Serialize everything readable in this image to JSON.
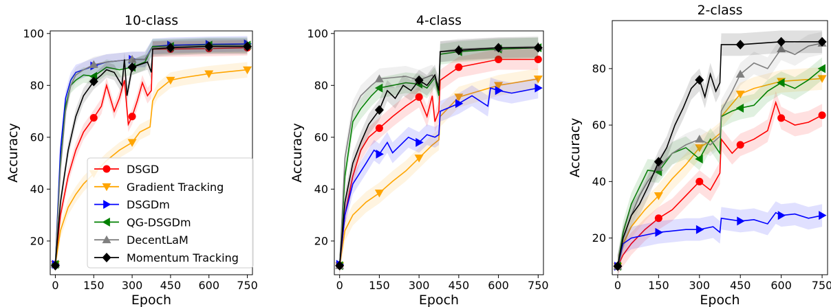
{
  "series_styles": {
    "DSGD": {
      "color": "#ff0000",
      "marker": "circle"
    },
    "Gradient Tracking": {
      "color": "#ffa500",
      "marker": "triangle-down"
    },
    "DSGDm": {
      "color": "#0000ff",
      "marker": "triangle-right"
    },
    "QG-DSGDm": {
      "color": "#008000",
      "marker": "triangle-left"
    },
    "DecentLaM": {
      "color": "#808080",
      "marker": "triangle-up"
    },
    "Momentum Tracking": {
      "color": "#000000",
      "marker": "diamond"
    }
  },
  "legend": {
    "placement": "lower-right",
    "entries": [
      "DSGD",
      "Gradient Tracking",
      "DSGDm",
      "QG-DSGDm",
      "DecentLaM",
      "Momentum Tracking"
    ]
  },
  "chart_data": [
    {
      "type": "line",
      "title": "10-class",
      "xlabel": "Epoch",
      "ylabel": "Accuracy",
      "xlim": [
        -20,
        770
      ],
      "ylim": [
        7,
        101
      ],
      "xticks": [
        0,
        150,
        300,
        450,
        600,
        750
      ],
      "yticks": [
        20,
        40,
        60,
        80,
        100
      ],
      "grid": false,
      "series": [
        {
          "name": "DSGD",
          "x": [
            0,
            20,
            50,
            80,
            110,
            150,
            180,
            200,
            230,
            250,
            270,
            285,
            300,
            320,
            340,
            360,
            375,
            380,
            450,
            600,
            750
          ],
          "y": [
            11,
            30,
            45,
            55,
            62,
            67.5,
            72,
            80,
            70,
            75,
            82,
            65,
            68,
            74,
            81,
            76,
            78,
            94,
            94,
            94.2,
            94.5
          ]
        },
        {
          "name": "Gradient Tracking",
          "x": [
            0,
            20,
            50,
            80,
            110,
            150,
            200,
            250,
            300,
            330,
            370,
            380,
            400,
            450,
            500,
            600,
            750
          ],
          "y": [
            11,
            24,
            33,
            38,
            42,
            46,
            51,
            55,
            58,
            62,
            64,
            74,
            78,
            82,
            83,
            84.5,
            86
          ]
        },
        {
          "name": "DSGDm",
          "x": [
            0,
            20,
            40,
            60,
            80,
            110,
            150,
            200,
            250,
            300,
            350,
            380,
            450,
            600,
            750
          ],
          "y": [
            11,
            55,
            75,
            82,
            85,
            86,
            87.5,
            89,
            89.5,
            90,
            90,
            95,
            95.5,
            95.8,
            96
          ]
        },
        {
          "name": "QG-DSGDm",
          "x": [
            0,
            20,
            40,
            60,
            80,
            110,
            150,
            200,
            250,
            300,
            350,
            380,
            450,
            600,
            750
          ],
          "y": [
            11,
            50,
            72,
            80,
            82,
            84,
            83.5,
            87,
            86,
            87,
            89,
            95,
            95,
            95.5,
            95.5
          ]
        },
        {
          "name": "DecentLaM",
          "x": [
            0,
            20,
            40,
            60,
            80,
            110,
            150,
            200,
            250,
            300,
            350,
            380,
            450,
            600,
            750
          ],
          "y": [
            11,
            48,
            70,
            80,
            84,
            86,
            88,
            89,
            89.5,
            90,
            90,
            94.5,
            95,
            95.3,
            95.5
          ]
        },
        {
          "name": "Momentum Tracking",
          "x": [
            0,
            20,
            50,
            80,
            110,
            150,
            180,
            200,
            230,
            260,
            270,
            280,
            300,
            330,
            360,
            375,
            380,
            450,
            600,
            750
          ],
          "y": [
            10.5,
            35,
            55,
            68,
            76,
            81.5,
            84,
            86,
            85,
            80,
            90,
            76,
            87,
            88,
            89,
            85,
            94,
            94.5,
            95,
            95
          ]
        }
      ]
    },
    {
      "type": "line",
      "title": "4-class",
      "xlabel": "Epoch",
      "ylabel": "Accuracy",
      "xlim": [
        -20,
        770
      ],
      "ylim": [
        7,
        101
      ],
      "xticks": [
        0,
        150,
        300,
        450,
        600,
        750
      ],
      "yticks": [
        20,
        40,
        60,
        80,
        100
      ],
      "grid": false,
      "series": [
        {
          "name": "DSGD",
          "x": [
            0,
            20,
            50,
            80,
            110,
            150,
            200,
            250,
            300,
            330,
            350,
            360,
            375,
            380,
            450,
            500,
            600,
            750
          ],
          "y": [
            10.5,
            30,
            45,
            55,
            60,
            63.5,
            68,
            72,
            75.5,
            68,
            76,
            66,
            70,
            82,
            87,
            88,
            90,
            90
          ]
        },
        {
          "name": "Gradient Tracking",
          "x": [
            0,
            20,
            50,
            100,
            150,
            200,
            250,
            300,
            350,
            375,
            380,
            450,
            600,
            750
          ],
          "y": [
            10.5,
            24,
            30,
            35,
            38.5,
            43,
            47,
            52,
            57,
            59,
            68,
            75.5,
            80,
            82.5
          ]
        },
        {
          "name": "DSGDm",
          "x": [
            0,
            20,
            50,
            100,
            130,
            150,
            180,
            200,
            230,
            260,
            300,
            330,
            360,
            375,
            380,
            450,
            500,
            560,
            570,
            600,
            650,
            700,
            750
          ],
          "y": [
            11,
            30,
            42,
            50,
            55,
            53.5,
            58,
            54,
            57,
            60,
            58,
            61,
            60,
            61,
            70,
            73,
            76,
            72,
            79,
            78,
            77,
            78,
            79
          ]
        },
        {
          "name": "QG-DSGDm",
          "x": [
            0,
            20,
            50,
            80,
            120,
            150,
            200,
            250,
            300,
            330,
            360,
            375,
            380,
            450,
            600,
            750
          ],
          "y": [
            10.5,
            45,
            66,
            71,
            76,
            79,
            80,
            81,
            80.5,
            79,
            83,
            76,
            92,
            93,
            94,
            94.5
          ]
        },
        {
          "name": "DecentLaM",
          "x": [
            0,
            20,
            50,
            80,
            120,
            150,
            200,
            250,
            300,
            350,
            375,
            380,
            450,
            600,
            750
          ],
          "y": [
            10.5,
            52,
            70,
            76,
            80,
            82.5,
            83,
            83.5,
            82,
            84,
            80,
            93,
            94,
            94.5,
            95
          ]
        },
        {
          "name": "Momentum Tracking",
          "x": [
            0,
            20,
            50,
            80,
            110,
            150,
            180,
            210,
            240,
            270,
            300,
            330,
            360,
            375,
            380,
            450,
            600,
            750
          ],
          "y": [
            10.5,
            35,
            50,
            58,
            65,
            70.5,
            78,
            75,
            80,
            78,
            82,
            80,
            84,
            78,
            93,
            93.5,
            94.5,
            94.5
          ]
        }
      ]
    },
    {
      "type": "line",
      "title": "2-class",
      "xlabel": "Epoch",
      "ylabel": "Accuracy",
      "xlim": [
        -20,
        770
      ],
      "ylim": [
        7,
        97
      ],
      "xticks": [
        0,
        150,
        300,
        450,
        600,
        750
      ],
      "yticks": [
        20,
        40,
        60,
        80
      ],
      "grid": false,
      "series": [
        {
          "name": "DSGD",
          "x": [
            0,
            20,
            50,
            100,
            150,
            200,
            250,
            300,
            340,
            375,
            380,
            420,
            450,
            500,
            550,
            580,
            600,
            650,
            700,
            750
          ],
          "y": [
            10,
            14,
            18,
            23,
            27,
            30,
            35,
            40,
            37,
            43,
            55,
            50,
            53,
            55,
            58,
            68,
            62.5,
            60,
            61,
            63.5
          ]
        },
        {
          "name": "Gradient Tracking",
          "x": [
            0,
            20,
            50,
            100,
            150,
            200,
            250,
            300,
            350,
            375,
            380,
            450,
            500,
            600,
            750
          ],
          "y": [
            10,
            18,
            24,
            30,
            35,
            41,
            46,
            52,
            55,
            57,
            63,
            71,
            73,
            75.5,
            76.5
          ]
        },
        {
          "name": "DSGDm",
          "x": [
            0,
            20,
            50,
            100,
            150,
            200,
            250,
            300,
            350,
            375,
            380,
            450,
            500,
            550,
            580,
            600,
            650,
            700,
            750
          ],
          "y": [
            10,
            18,
            20,
            21,
            22,
            22.5,
            23,
            23,
            24,
            22,
            27,
            26,
            26.5,
            25,
            29,
            28,
            28.5,
            27,
            28
          ]
        },
        {
          "name": "QG-DSGDm",
          "x": [
            0,
            20,
            50,
            80,
            110,
            150,
            200,
            250,
            300,
            340,
            375,
            380,
            420,
            450,
            500,
            550,
            600,
            650,
            700,
            750
          ],
          "y": [
            10,
            22,
            32,
            38,
            44,
            43.5,
            50,
            52,
            48,
            55,
            50,
            63,
            65,
            66,
            67,
            72,
            75,
            73,
            76,
            80
          ]
        },
        {
          "name": "DecentLaM",
          "x": [
            0,
            20,
            50,
            80,
            110,
            150,
            200,
            250,
            300,
            340,
            375,
            380,
            420,
            450,
            500,
            550,
            600,
            650,
            700,
            750
          ],
          "y": [
            10,
            20,
            28,
            35,
            40,
            45,
            50,
            53,
            55,
            53,
            56,
            65,
            72,
            78,
            82,
            80,
            87,
            85,
            88,
            89
          ]
        },
        {
          "name": "Momentum Tracking",
          "x": [
            0,
            20,
            50,
            80,
            110,
            150,
            180,
            210,
            240,
            270,
            300,
            320,
            340,
            360,
            375,
            380,
            450,
            600,
            750
          ],
          "y": [
            10,
            20,
            28,
            32,
            38,
            47,
            52,
            60,
            66,
            73,
            76,
            70,
            78,
            72,
            75,
            88.5,
            88.5,
            89.5,
            89.5
          ]
        }
      ]
    }
  ]
}
